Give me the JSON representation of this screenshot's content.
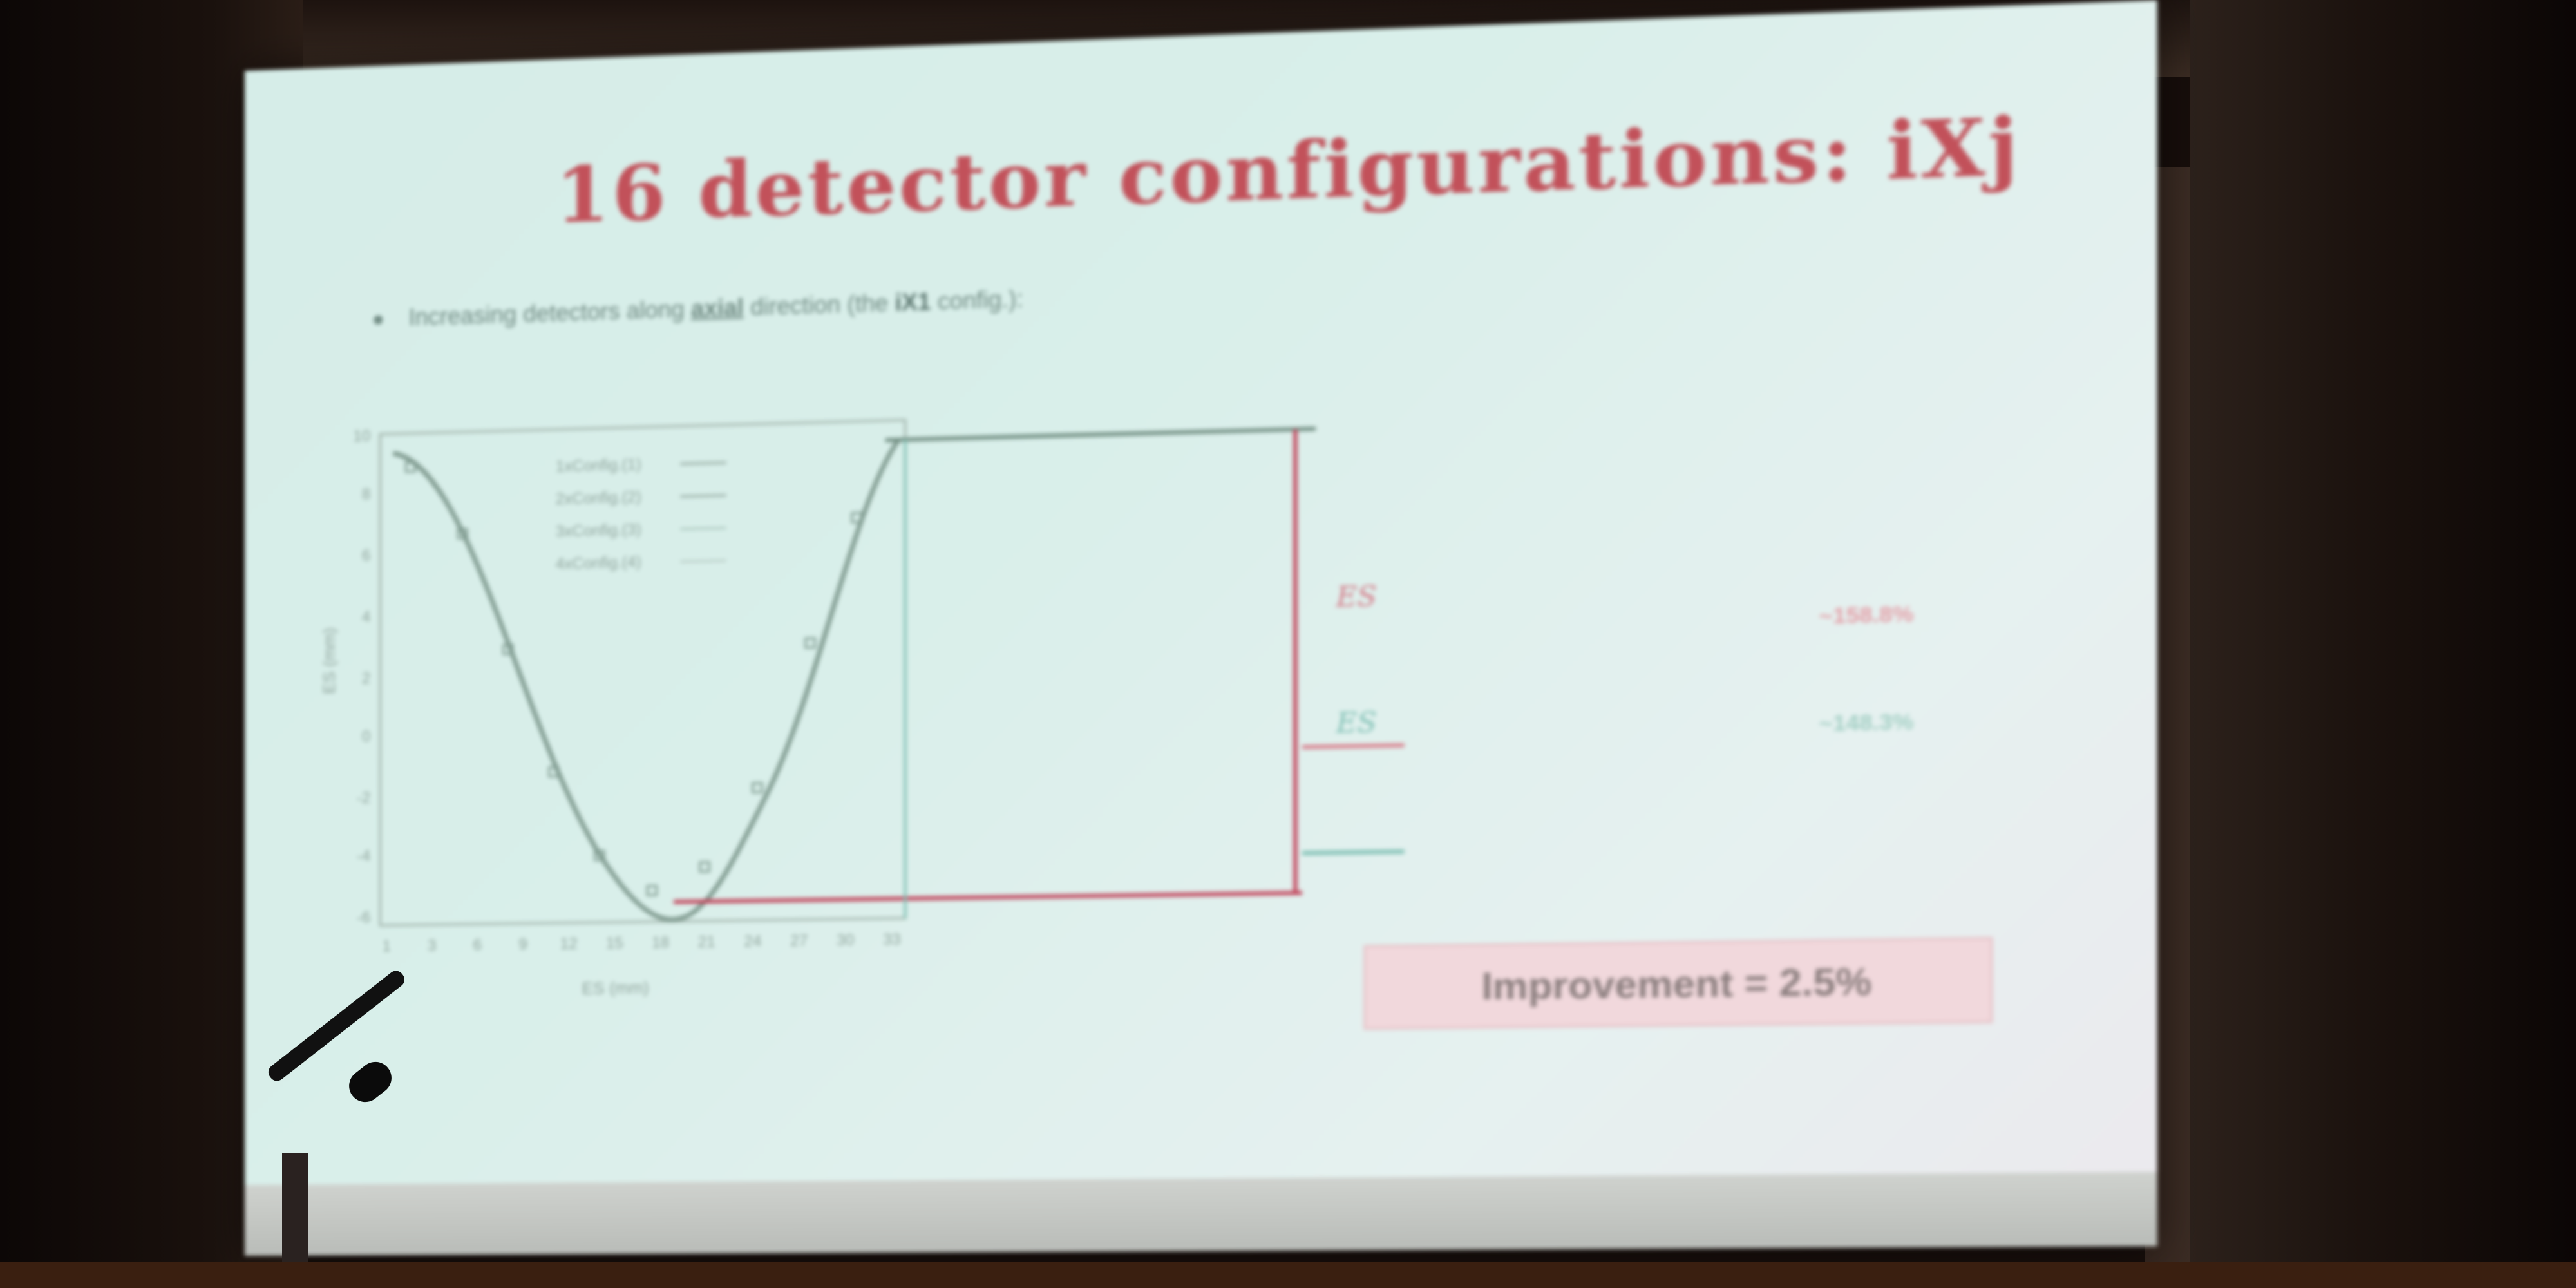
{
  "slide": {
    "title": "16 detector configurations: iXj",
    "bullet": {
      "prefix": "Increasing detectors along",
      "emphasis": "axial",
      "middle": "direction (the",
      "config": "iX1",
      "suffix": "config.):"
    },
    "plot": {
      "legend": [
        "1xConfig.(1)",
        "2xConfig.(2)",
        "3xConfig.(3)",
        "4xConfig.(4)"
      ],
      "y_ticks": [
        "10",
        "8",
        "6",
        "4",
        "2",
        "0",
        "-2",
        "-4",
        "-6"
      ],
      "x_ticks": [
        "1",
        "3",
        "6",
        "9",
        "12",
        "15",
        "18",
        "21",
        "24",
        "27",
        "30",
        "33"
      ],
      "ylabel": "ES (mm)",
      "xlabel": "ES (mm)"
    },
    "annotations": {
      "label_red": "ES",
      "label_teal": "ES",
      "value_red": "~158.8%",
      "value_teal": "~148.3%"
    },
    "improvement": "Improvement = 2.5%",
    "footer": "",
    "page": ""
  },
  "colors": {
    "title": "#c2515a",
    "curve": "#7f9a8f",
    "red_line": "#c2435a",
    "teal_line": "#6fb6a5"
  }
}
